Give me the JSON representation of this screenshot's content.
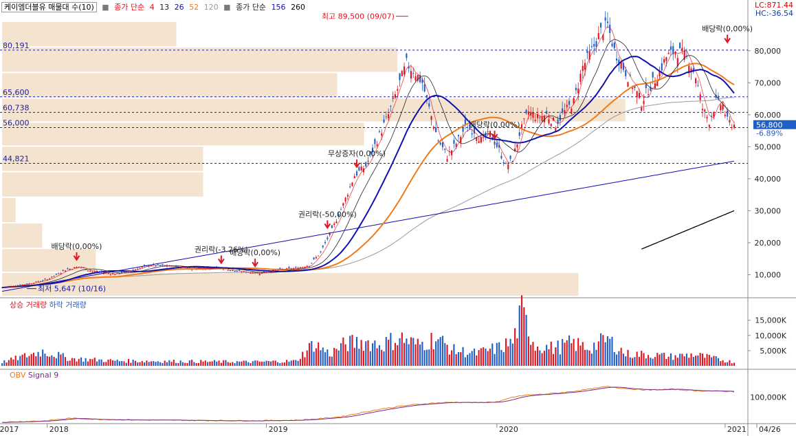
{
  "header": {
    "stock_box": "케이엠더블유 매물대 수(10)",
    "ma_short_label": "종가 단순",
    "ma_short_periods": [
      "4",
      "13",
      "26",
      "52",
      "120"
    ],
    "ma_long_label": "종가 단순",
    "ma_long_periods": [
      "156",
      "260"
    ],
    "lc": "LC:871.44",
    "hc": "HC:-36.54"
  },
  "colors": {
    "up": "#e0141e",
    "down": "#1f5fc8",
    "ma4": "#e0141e",
    "ma13": "#222222",
    "ma26": "#1010b0",
    "ma52": "#f07a1a",
    "ma120": "#999999",
    "ma156": "#1010b0",
    "ma260": "#000000",
    "volume_profile": "#f3e3cf",
    "obv": "#f07a1a",
    "signal": "#7a2a8a",
    "price_tag": "#1f5fc8"
  },
  "chart_data": [
    {
      "type": "candlestick",
      "title": "케이엠더블유 매물대 수(10)",
      "x_labels": [
        "2017",
        "2018",
        "2019",
        "2020",
        "2021",
        "04/26"
      ],
      "y_ticks": [
        "10,000",
        "20,000",
        "30,000",
        "40,000",
        "50,000",
        "60,000",
        "70,000",
        "80,000"
      ],
      "ylim": [
        3000,
        92000
      ],
      "current_price": "56,800",
      "current_change": "-6.89%",
      "h_lines": [
        {
          "label": "80,191",
          "value": 80191
        },
        {
          "label": "65,600",
          "value": 65600
        },
        {
          "label": "60,738",
          "value": 60738
        },
        {
          "label": "56,000",
          "value": 56000
        },
        {
          "label": "44,821",
          "value": 44821
        }
      ],
      "annotations": [
        {
          "text": "최고 89,500 (09/07)",
          "x_week": 181,
          "value": 89500,
          "kind": "high"
        },
        {
          "text": "최저 5,647 (10/16)",
          "x_week": 0,
          "value": 5647,
          "kind": "low"
        },
        {
          "text": "배당락(0,00%)",
          "x_week": 33,
          "value": 14000,
          "kind": "event"
        },
        {
          "text": "권리락(-3.26%)",
          "x_week": 97,
          "value": 13000,
          "kind": "event"
        },
        {
          "text": "배당락(0,00%)",
          "x_week": 112,
          "value": 12000,
          "kind": "event"
        },
        {
          "text": "권리락(-50,00%)",
          "x_week": 144,
          "value": 24000,
          "kind": "event"
        },
        {
          "text": "무상증자(0,00%)",
          "x_week": 157,
          "value": 43000,
          "kind": "event"
        },
        {
          "text": "배당락(0,00%)",
          "x_week": 218,
          "value": 52000,
          "kind": "event"
        },
        {
          "text": "배당락(0,00%)",
          "x_week": 321,
          "value": 82000,
          "kind": "event"
        }
      ],
      "volume_profile": [
        {
          "low": 3000,
          "high": 10500,
          "rel": 0.86
        },
        {
          "low": 10500,
          "high": 18000,
          "rel": 0.14
        },
        {
          "low": 18000,
          "high": 26000,
          "rel": 0.06
        },
        {
          "low": 26000,
          "high": 34000,
          "rel": 0.02
        },
        {
          "low": 34000,
          "high": 42000,
          "rel": 0.3
        },
        {
          "low": 42000,
          "high": 50000,
          "rel": 0.3
        },
        {
          "low": 50000,
          "high": 57500,
          "rel": 0.54
        },
        {
          "low": 57500,
          "high": 65000,
          "rel": 0.93
        },
        {
          "low": 65000,
          "high": 73000,
          "rel": 0.5
        },
        {
          "low": 73000,
          "high": 81000,
          "rel": 0.59
        },
        {
          "low": 81000,
          "high": 89000,
          "rel": 0.26
        }
      ],
      "right_ma_values": {
        "ma156": 45500,
        "ma260": 30000,
        "ma260_start_week": 283,
        "ma260_start_value": 18000
      },
      "close_keypoints": [
        [
          0,
          6000
        ],
        [
          12,
          7200
        ],
        [
          20,
          8500
        ],
        [
          28,
          11500
        ],
        [
          34,
          12500
        ],
        [
          40,
          11000
        ],
        [
          50,
          10200
        ],
        [
          58,
          11500
        ],
        [
          66,
          13000
        ],
        [
          76,
          12500
        ],
        [
          86,
          12000
        ],
        [
          96,
          12200
        ],
        [
          104,
          11000
        ],
        [
          114,
          10500
        ],
        [
          122,
          11500
        ],
        [
          130,
          12000
        ],
        [
          136,
          13000
        ],
        [
          141,
          17000
        ],
        [
          146,
          24000
        ],
        [
          151,
          32000
        ],
        [
          156,
          41000
        ],
        [
          161,
          44000
        ],
        [
          166,
          52000
        ],
        [
          171,
          60000
        ],
        [
          176,
          70000
        ],
        [
          179,
          76000
        ],
        [
          183,
          73000
        ],
        [
          186,
          70000
        ],
        [
          189,
          62000
        ],
        [
          193,
          52000
        ],
        [
          197,
          47000
        ],
        [
          201,
          51000
        ],
        [
          205,
          56000
        ],
        [
          209,
          55000
        ],
        [
          212,
          52000
        ],
        [
          216,
          54000
        ],
        [
          220,
          49000
        ],
        [
          223,
          44000
        ],
        [
          226,
          46000
        ],
        [
          229,
          54000
        ],
        [
          233,
          61000
        ],
        [
          237,
          59000
        ],
        [
          241,
          60000
        ],
        [
          245,
          57000
        ],
        [
          249,
          61000
        ],
        [
          253,
          64000
        ],
        [
          257,
          75000
        ],
        [
          261,
          80000
        ],
        [
          265,
          86000
        ],
        [
          268,
          88000
        ],
        [
          271,
          80000
        ],
        [
          274,
          76000
        ],
        [
          277,
          72000
        ],
        [
          280,
          68000
        ],
        [
          283,
          64000
        ],
        [
          286,
          68000
        ],
        [
          290,
          72000
        ],
        [
          294,
          78000
        ],
        [
          298,
          80000
        ],
        [
          301,
          79000
        ],
        [
          304,
          77000
        ],
        [
          307,
          72000
        ],
        [
          310,
          62000
        ],
        [
          313,
          58000
        ],
        [
          316,
          64000
        ],
        [
          319,
          63000
        ],
        [
          321,
          58000
        ],
        [
          324,
          56800
        ]
      ]
    },
    {
      "type": "bar",
      "title": "상승 거래량 하락 거래량",
      "series": [
        {
          "name": "상승 거래량"
        },
        {
          "name": "하락 거래량"
        }
      ],
      "y_ticks": [
        "5,000K",
        "10,000K",
        "15,000K"
      ],
      "ylim": [
        0,
        19000
      ],
      "volume_keypoints": [
        [
          0,
          1300
        ],
        [
          18,
          5200
        ],
        [
          30,
          2600
        ],
        [
          50,
          1800
        ],
        [
          80,
          1600
        ],
        [
          110,
          1400
        ],
        [
          130,
          1700
        ],
        [
          138,
          8000
        ],
        [
          145,
          4200
        ],
        [
          152,
          7800
        ],
        [
          160,
          8600
        ],
        [
          168,
          7500
        ],
        [
          176,
          10000
        ],
        [
          184,
          7400
        ],
        [
          192,
          9800
        ],
        [
          200,
          5500
        ],
        [
          210,
          4400
        ],
        [
          220,
          6500
        ],
        [
          226,
          8400
        ],
        [
          230,
          18500
        ],
        [
          236,
          7400
        ],
        [
          244,
          6200
        ],
        [
          252,
          8000
        ],
        [
          260,
          6400
        ],
        [
          268,
          9400
        ],
        [
          276,
          4200
        ],
        [
          286,
          4000
        ],
        [
          296,
          3300
        ],
        [
          306,
          4000
        ],
        [
          316,
          2500
        ],
        [
          324,
          1300
        ]
      ]
    },
    {
      "type": "line",
      "title": "OBV Signal 9",
      "series": [
        {
          "name": "OBV"
        },
        {
          "name": "Signal 9"
        }
      ],
      "y_ticks": [
        "100,000K"
      ],
      "ylim": [
        0,
        200000
      ],
      "obv_keypoints": [
        [
          0,
          0
        ],
        [
          20,
          6000
        ],
        [
          30,
          16000
        ],
        [
          40,
          12000
        ],
        [
          60,
          9000
        ],
        [
          90,
          7000
        ],
        [
          110,
          6000
        ],
        [
          130,
          8000
        ],
        [
          140,
          14000
        ],
        [
          150,
          22000
        ],
        [
          160,
          40000
        ],
        [
          170,
          56000
        ],
        [
          180,
          68000
        ],
        [
          190,
          76000
        ],
        [
          200,
          80000
        ],
        [
          210,
          78000
        ],
        [
          220,
          82000
        ],
        [
          226,
          100000
        ],
        [
          232,
          108000
        ],
        [
          240,
          112000
        ],
        [
          250,
          120000
        ],
        [
          260,
          132000
        ],
        [
          268,
          142000
        ],
        [
          276,
          134000
        ],
        [
          286,
          128000
        ],
        [
          296,
          132000
        ],
        [
          306,
          126000
        ],
        [
          316,
          124000
        ],
        [
          324,
          122000
        ]
      ]
    }
  ]
}
